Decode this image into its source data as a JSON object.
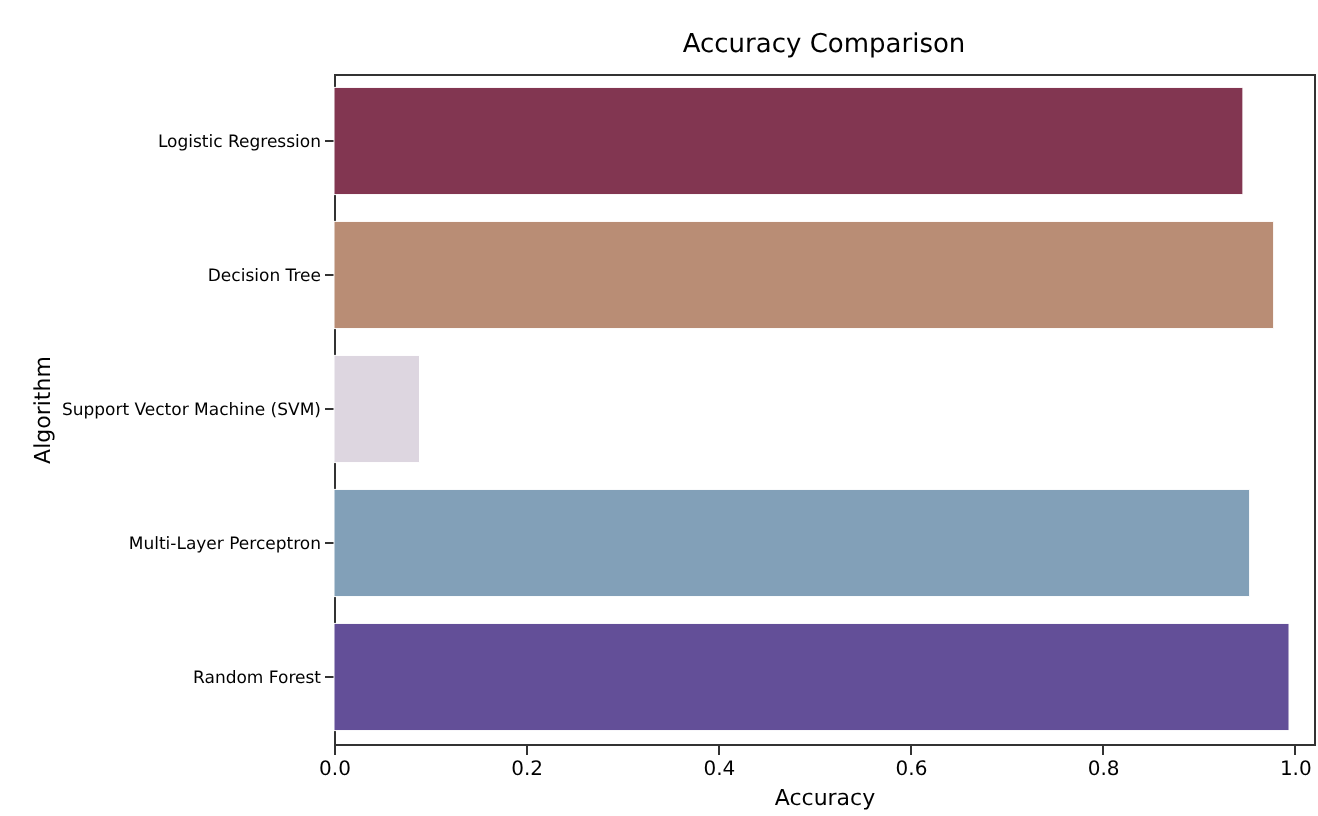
{
  "chart_data": {
    "type": "bar",
    "orientation": "horizontal",
    "title": "Accuracy Comparison",
    "xlabel": "Accuracy",
    "ylabel": "Algorithm",
    "categories": [
      "Logistic Regression",
      "Decision Tree",
      "Support Vector Machine (SVM)",
      "Multi-Layer Perceptron",
      "Random Forest"
    ],
    "values": [
      0.946,
      0.978,
      0.089,
      0.953,
      0.994
    ],
    "colors": [
      "#823651",
      "#b98d75",
      "#ddd6e0",
      "#82a0b8",
      "#634f98"
    ],
    "xlim": [
      0,
      1.02
    ],
    "xticks": [
      {
        "value": 0,
        "label": "0.0"
      },
      0.2,
      0.4,
      0.6,
      0.8,
      {
        "value": 1,
        "label": "1.0"
      }
    ],
    "grid": false
  }
}
